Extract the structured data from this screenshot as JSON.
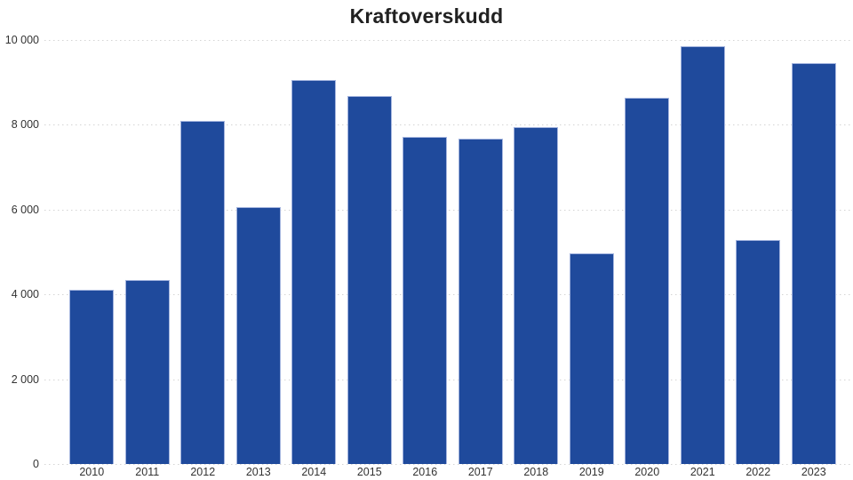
{
  "chart_data": {
    "type": "bar",
    "title": "Kraftoverskudd",
    "categories": [
      "2010",
      "2011",
      "2012",
      "2013",
      "2014",
      "2015",
      "2016",
      "2017",
      "2018",
      "2019",
      "2020",
      "2021",
      "2022",
      "2023"
    ],
    "values": [
      4100,
      4330,
      8100,
      6060,
      9050,
      8680,
      7710,
      7680,
      7950,
      4970,
      8630,
      9850,
      5290,
      9460
    ],
    "xlabel": "",
    "ylabel": "",
    "ylim": [
      0,
      10000
    ],
    "yticks": [
      {
        "value": 0,
        "label": "0"
      },
      {
        "value": 2000,
        "label": "2 000"
      },
      {
        "value": 4000,
        "label": "4 000"
      },
      {
        "value": 6000,
        "label": "6 000"
      },
      {
        "value": 8000,
        "label": "8 000"
      },
      {
        "value": 10000,
        "label": "10 000"
      }
    ],
    "grid": "horizontal-dotted",
    "legend": "none",
    "colors": {
      "bar_fill": "#1f4a9c",
      "bar_border": "#a3b4de",
      "grid_line": "#d4d4d4",
      "title_text": "#212121",
      "tick_text": "#333333",
      "background": "#ffffff"
    }
  }
}
